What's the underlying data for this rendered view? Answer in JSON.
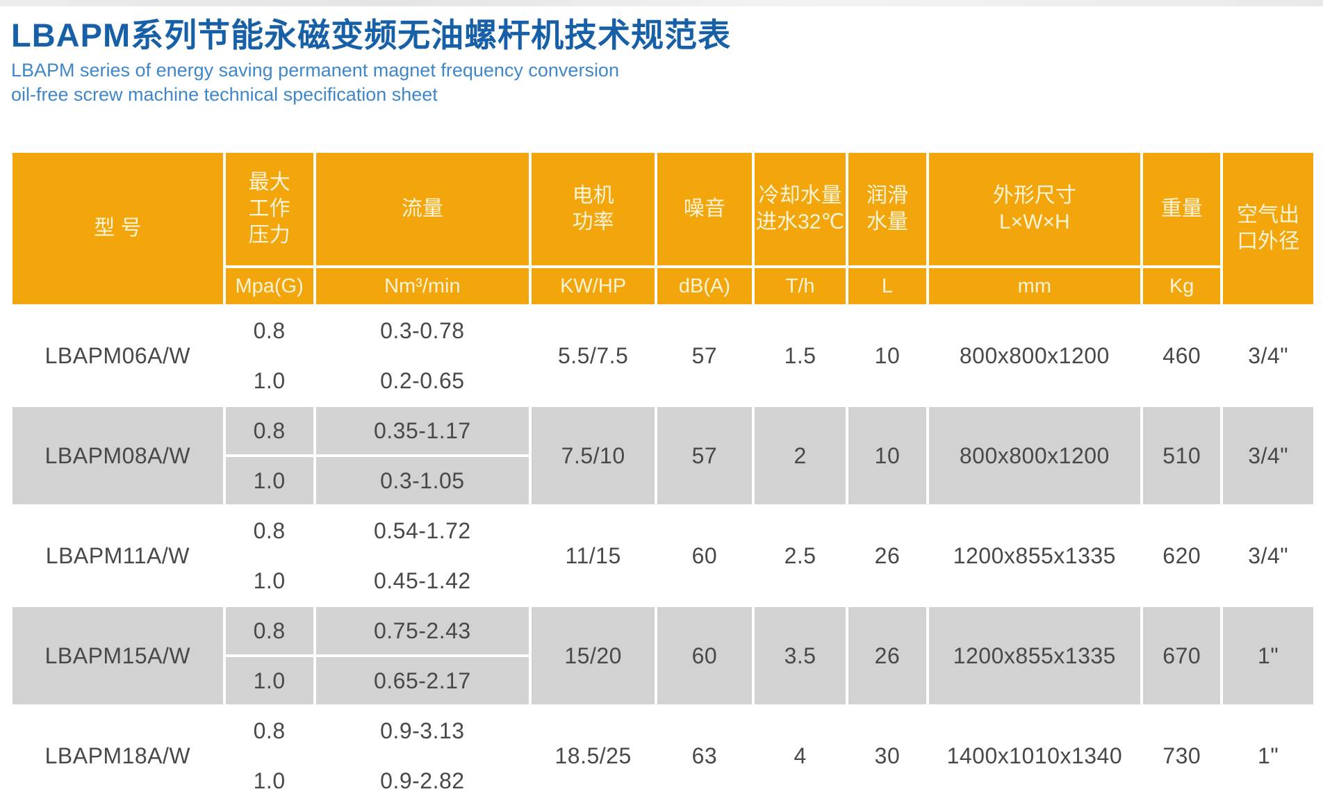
{
  "page": {
    "title": "LBAPM系列节能永磁变频无油螺杆机技术规范表",
    "subtitle_line1": "LBAPM series of energy saving permanent magnet frequency conversion",
    "subtitle_line2": "oil-free screw machine technical specification sheet"
  },
  "colors": {
    "title_blue": "#1760a8",
    "subtitle_blue": "#3f87c9",
    "header_orange": "#f2a60c",
    "header_text_cream": "#fdf4d7",
    "row_gray": "#d2d2d2",
    "row_white": "#ffffff",
    "data_text": "#484848"
  },
  "table": {
    "headers": {
      "model": "型 号",
      "max_pressure": "最大\n工作\n压力",
      "flow": "流量",
      "power": "电机\n功率",
      "noise": "噪音",
      "cooling": "冷却水量\n进水32℃",
      "lubrication": "润滑\n水量",
      "dimensions": "外形尺寸\nL×W×H",
      "weight": "重量",
      "air_outlet": "空气出\n口外径"
    },
    "units": {
      "max_pressure": "Mpa(G)",
      "flow": "Nm³/min",
      "power": "KW/HP",
      "noise": "dB(A)",
      "cooling": "T/h",
      "lubrication": "L",
      "dimensions": "mm",
      "weight": "Kg"
    },
    "rows": [
      {
        "model": "LBAPM06A/W",
        "sub": [
          {
            "pressure": "0.8",
            "flow": "0.3-0.78"
          },
          {
            "pressure": "1.0",
            "flow": "0.2-0.65"
          }
        ],
        "power": "5.5/7.5",
        "noise": "57",
        "cooling": "1.5",
        "lubrication": "10",
        "dimensions": "800x800x1200",
        "weight": "460",
        "air_outlet": "3/4\""
      },
      {
        "model": "LBAPM08A/W",
        "sub": [
          {
            "pressure": "0.8",
            "flow": "0.35-1.17"
          },
          {
            "pressure": "1.0",
            "flow": "0.3-1.05"
          }
        ],
        "power": "7.5/10",
        "noise": "57",
        "cooling": "2",
        "lubrication": "10",
        "dimensions": "800x800x1200",
        "weight": "510",
        "air_outlet": "3/4\""
      },
      {
        "model": "LBAPM11A/W",
        "sub": [
          {
            "pressure": "0.8",
            "flow": "0.54-1.72"
          },
          {
            "pressure": "1.0",
            "flow": "0.45-1.42"
          }
        ],
        "power": "11/15",
        "noise": "60",
        "cooling": "2.5",
        "lubrication": "26",
        "dimensions": "1200x855x1335",
        "weight": "620",
        "air_outlet": "3/4\""
      },
      {
        "model": "LBAPM15A/W",
        "sub": [
          {
            "pressure": "0.8",
            "flow": "0.75-2.43"
          },
          {
            "pressure": "1.0",
            "flow": "0.65-2.17"
          }
        ],
        "power": "15/20",
        "noise": "60",
        "cooling": "3.5",
        "lubrication": "26",
        "dimensions": "1200x855x1335",
        "weight": "670",
        "air_outlet": "1\""
      },
      {
        "model": "LBAPM18A/W",
        "sub": [
          {
            "pressure": "0.8",
            "flow": "0.9-3.13"
          },
          {
            "pressure": "1.0",
            "flow": "0.9-2.82"
          }
        ],
        "power": "18.5/25",
        "noise": "63",
        "cooling": "4",
        "lubrication": "30",
        "dimensions": "1400x1010x1340",
        "weight": "730",
        "air_outlet": "1\""
      }
    ]
  }
}
